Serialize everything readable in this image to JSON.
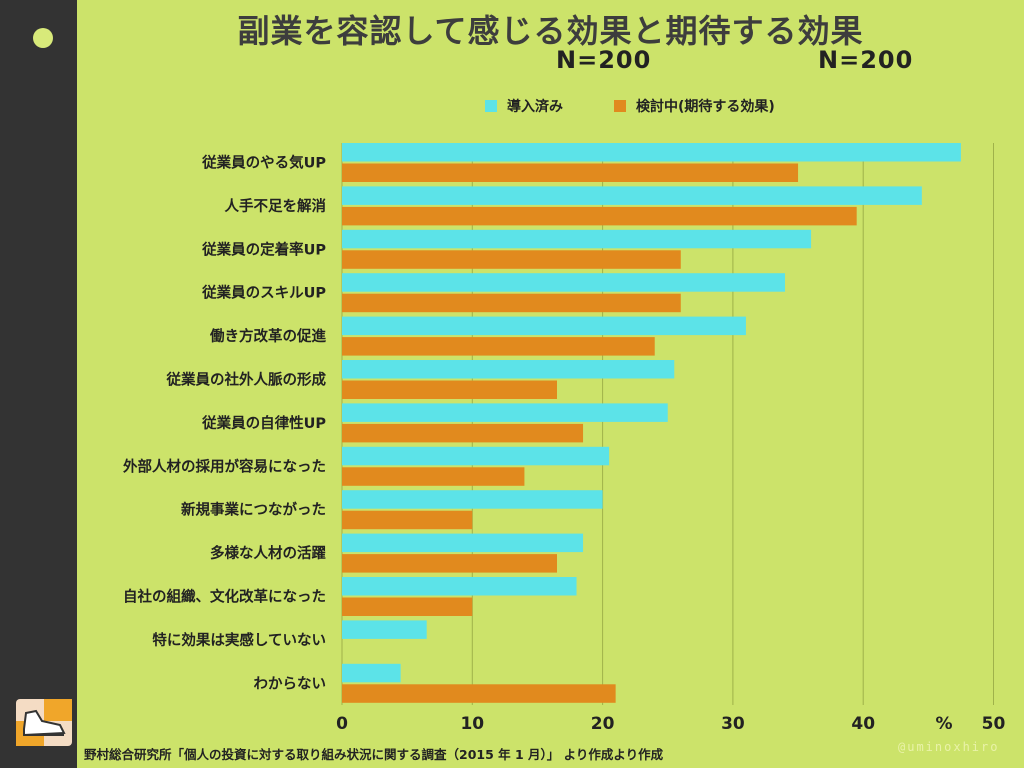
{
  "title": "副業を容認して感じる効果と期待する効果",
  "n_labels": [
    "N=200",
    "N=200"
  ],
  "source": "野村総合研究所「個人の投資に対する取り組み状況に関する調査（2015 年 1 月）」 より作成より作成",
  "watermark": "@uminoxhiro",
  "colors": {
    "background": "#cce36a",
    "sidebar": "#333333",
    "implemented": "#5ce3e8",
    "considering": "#e18a1e"
  },
  "chart_data": {
    "type": "bar",
    "orientation": "horizontal",
    "categories": [
      "従業員のやる気UP",
      "人手不足を解消",
      "従業員の定着率UP",
      "従業員のスキルUP",
      "働き方改革の促進",
      "従業員の社外人脈の形成",
      "従業員の自律性UP",
      "外部人材の採用が容易になった",
      "新規事業につながった",
      "多様な人材の活躍",
      "自社の組織、文化改革になった",
      "特に効果は実感していない",
      "わからない"
    ],
    "series": [
      {
        "name": "導入済み",
        "color": "#5ce3e8",
        "values": [
          47.5,
          44.5,
          36,
          34,
          31,
          25.5,
          25,
          20.5,
          20,
          18.5,
          18,
          6.5,
          4.5
        ]
      },
      {
        "name": "検討中(期待する効果)",
        "color": "#e18a1e",
        "values": [
          35,
          39.5,
          26,
          26,
          24,
          16.5,
          18.5,
          14,
          10,
          16.5,
          10,
          0,
          21
        ]
      }
    ],
    "xticks": [
      "0",
      "10",
      "20",
      "30",
      "40",
      "%",
      "50"
    ],
    "xlim": [
      0,
      50
    ],
    "grid": true,
    "legend": "top"
  }
}
